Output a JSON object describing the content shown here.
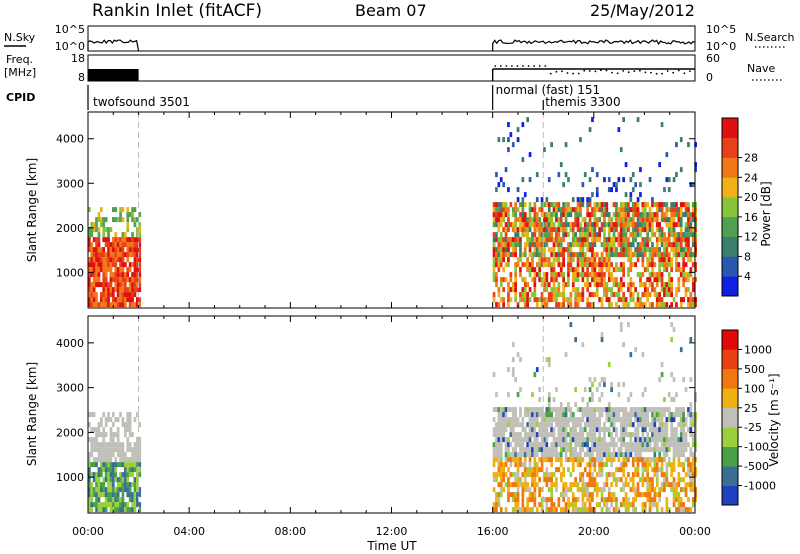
{
  "header": {
    "station": "Rankin Inlet (fitACF)",
    "beam": "Beam 07",
    "date": "25/May/2012"
  },
  "strip_labels": {
    "nsky": "N.Sky",
    "nsearch": "N.Search",
    "freq_line1": "Freq.",
    "freq_line2": "[MHz]",
    "nave": "Nave",
    "cpid": "CPID",
    "ticks": {
      "nsky_top": "10^5",
      "nsky_bottom": "10^0",
      "nsearch_top": "10^5",
      "nsearch_bottom": "10^0",
      "freq_top": "18",
      "freq_bottom": "8",
      "nave_top": "60",
      "nave_bottom": "0"
    }
  },
  "cpid_modes": [
    {
      "label": "twofsound 3501"
    },
    {
      "label": "normal (fast) 151"
    },
    {
      "label": "themis 3300"
    }
  ],
  "chart_data": [
    {
      "type": "heatmap",
      "name": "power",
      "ylabel": "Slant Range [km]",
      "ylim": [
        200,
        4600
      ],
      "yticks": [
        1000,
        2000,
        3000,
        4000
      ],
      "xlim_hours": [
        0,
        24
      ],
      "xticks": [
        "00:00",
        "04:00",
        "08:00",
        "12:00",
        "16:00",
        "20:00",
        "00:00"
      ],
      "colorbar": {
        "label": "Power [dB]",
        "ticks": [
          "4",
          "8",
          "12",
          "16",
          "20",
          "24",
          "28"
        ],
        "colors": [
          "#1020e0",
          "#2a58b0",
          "#3c7e6e",
          "#50a050",
          "#88c438",
          "#f0b018",
          "#f07818",
          "#e84018",
          "#e01010"
        ]
      },
      "observations": [
        {
          "start_hour": 0.0,
          "end_hour": 2.0,
          "range_km": [
            220,
            2450
          ]
        },
        {
          "start_hour": 16.0,
          "end_hour": 24.0,
          "range_km": [
            220,
            4400
          ]
        }
      ]
    },
    {
      "type": "heatmap",
      "name": "velocity",
      "ylabel": "Slant Range [km]",
      "ylim": [
        200,
        4600
      ],
      "yticks": [
        1000,
        2000,
        3000,
        4000
      ],
      "xlim_hours": [
        0,
        24
      ],
      "xticks": [
        "00:00",
        "04:00",
        "08:00",
        "12:00",
        "16:00",
        "20:00",
        "00:00"
      ],
      "xlabel": "Time UT",
      "colorbar": {
        "label": "Velocity  [m s⁻¹]",
        "ticks": [
          "1000",
          "500",
          "100",
          "25",
          "-25",
          "-100",
          "-500",
          "-1000"
        ],
        "colors": [
          "#2040c0",
          "#3a6e94",
          "#48a048",
          "#9ad03c",
          "#c0c0b8",
          "#f0b010",
          "#f07810",
          "#e84010",
          "#e00808"
        ]
      },
      "observations": [
        {
          "start_hour": 0.0,
          "end_hour": 2.0,
          "range_km": [
            220,
            2450
          ]
        },
        {
          "start_hour": 16.0,
          "end_hour": 24.0,
          "range_km": [
            220,
            4400
          ]
        }
      ]
    }
  ]
}
